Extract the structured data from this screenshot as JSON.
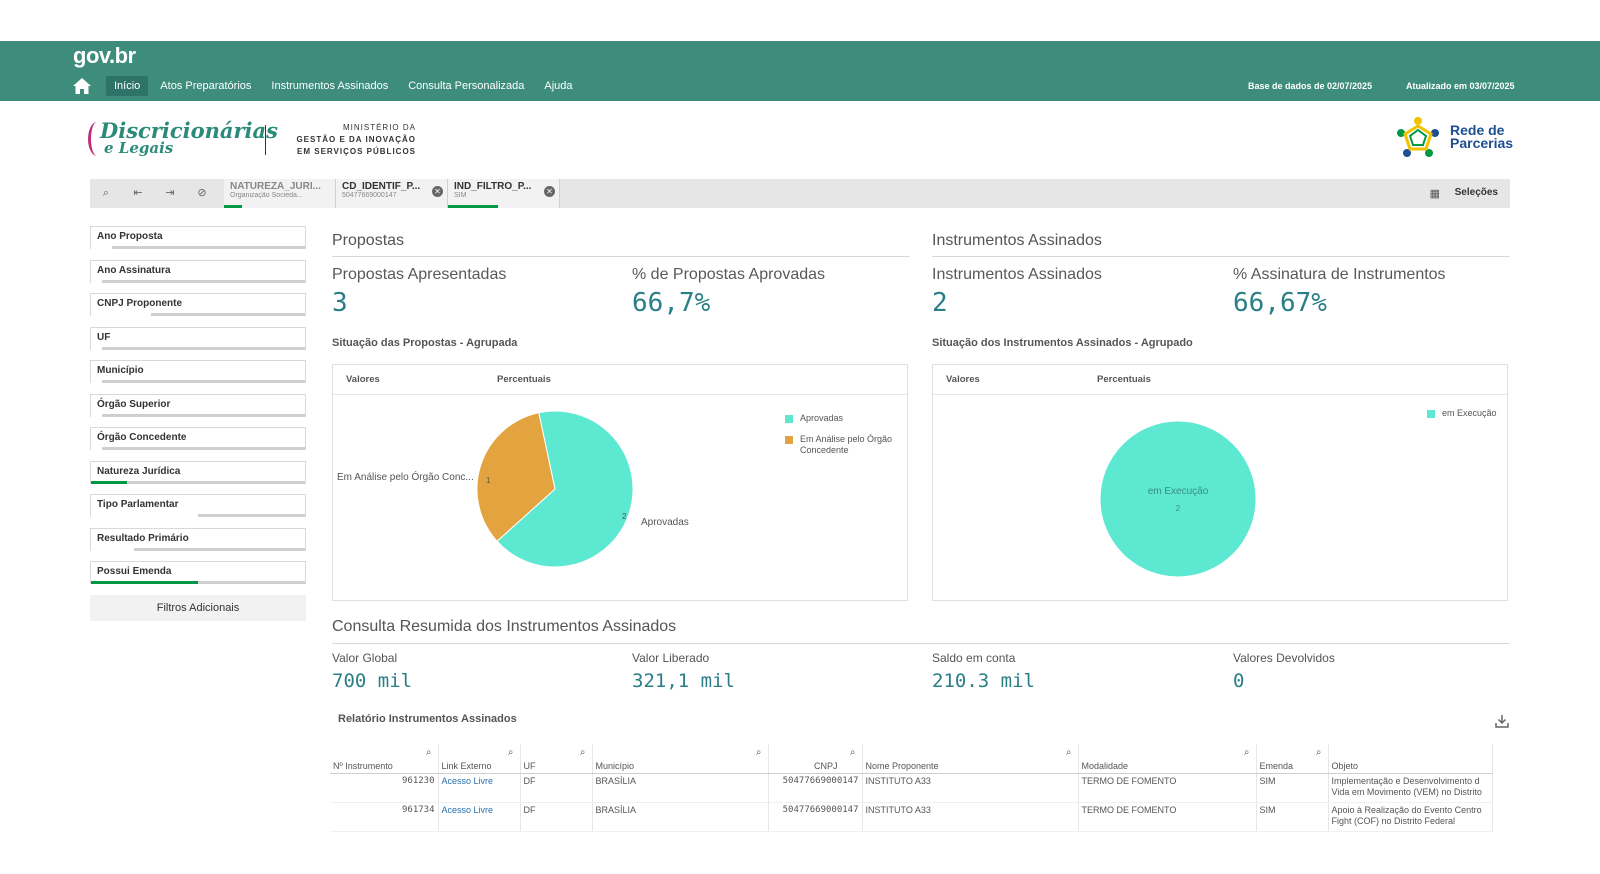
{
  "header": {
    "logo": "gov.br",
    "nav": [
      "Início",
      "Atos Preparatórios",
      "Instrumentos Assinados",
      "Consulta Personalizada",
      "Ajuda"
    ],
    "base_dados": "Base de dados de 02/07/2025",
    "atualizado": "Atualizado em 03/07/2025"
  },
  "brand": {
    "line1": "Discricionárias",
    "line2": "e Legais",
    "ministry_1": "MINISTÉRIO DA",
    "ministry_2": "GESTÃO E DA INOVAÇÃO",
    "ministry_3": "EM SERVIÇOS PÚBLICOS",
    "partner_1": "Rede de",
    "partner_2": "Parcerias"
  },
  "selection_bar": {
    "chips": [
      {
        "name": "NATUREZA_JURI...",
        "value": "Organização Socieda...",
        "fill": 0.2
      },
      {
        "name": "CD_IDENTIF_P...",
        "value": "50477669000147",
        "fill": 0
      },
      {
        "name": "IND_FILTRO_P...",
        "value": "SIM",
        "fill": 0.5
      }
    ],
    "selections_label": "Seleções"
  },
  "filters": [
    {
      "label": "Ano Proposta",
      "fill": 0.1,
      "green": false
    },
    {
      "label": "Ano Assinatura",
      "fill": 0.05,
      "green": false
    },
    {
      "label": "CNPJ Proponente",
      "fill": 0.28,
      "green": false
    },
    {
      "label": "UF",
      "fill": 0.05,
      "green": false
    },
    {
      "label": "Município",
      "fill": 0.05,
      "green": false
    },
    {
      "label": "Órgão Superior",
      "fill": 0.05,
      "green": false
    },
    {
      "label": "Órgão Concedente",
      "fill": 0.05,
      "green": false
    },
    {
      "label": "Natureza Jurídica",
      "fill": 0.17,
      "green": true
    },
    {
      "label": "Tipo Parlamentar",
      "fill": 0.5,
      "green": false
    },
    {
      "label": "Resultado Primário",
      "fill": 0.2,
      "green": false
    },
    {
      "label": "Possui Emenda",
      "fill": 0.5,
      "green": true
    }
  ],
  "filtros_adicionais": "Filtros Adicionais",
  "propostas": {
    "title": "Propostas",
    "kpi1_label": "Propostas Apresentadas",
    "kpi1_value": "3",
    "kpi2_label": "% de Propostas Aprovadas",
    "kpi2_value": "66,7%",
    "chart_title": "Situação das Propostas - Agrupada",
    "tab_valores": "Valores",
    "tab_percentuais": "Percentuais",
    "label_analise": "Em Análise pelo Órgão Conc...",
    "label_aprovadas": "Aprovadas",
    "val_analise": "1",
    "val_aprovadas": "2",
    "legend_1": "Aprovadas",
    "legend_2": "Em Análise pelo Órgão Concedente"
  },
  "instrumentos": {
    "title": "Instrumentos Assinados",
    "kpi1_label": "Instrumentos Assinados",
    "kpi1_value": "2",
    "kpi2_label": "% Assinatura de Instrumentos",
    "kpi2_value": "66,67%",
    "chart_title": "Situação dos Instrumentos Assinados - Agrupado",
    "tab_valores": "Valores",
    "tab_percentuais": "Percentuais",
    "slice_label": "em Execução",
    "slice_value": "2",
    "legend_1": "em Execução"
  },
  "chart_data": [
    {
      "type": "pie",
      "title": "Situação das Propostas - Agrupada",
      "categories": [
        "Aprovadas",
        "Em Análise pelo Órgão Concedente"
      ],
      "values": [
        2,
        1
      ],
      "colors": [
        "#5de8d2",
        "#e3a33e"
      ]
    },
    {
      "type": "pie",
      "title": "Situação dos Instrumentos Assinados - Agrupado",
      "categories": [
        "em Execução"
      ],
      "values": [
        2
      ],
      "colors": [
        "#5de8d2"
      ]
    }
  ],
  "resumo": {
    "title": "Consulta Resumida dos Instrumentos Assinados",
    "valor_global_label": "Valor Global",
    "valor_global": "700 mil",
    "valor_liberado_label": "Valor Liberado",
    "valor_liberado": "321,1 mil",
    "saldo_label": "Saldo em conta",
    "saldo": "210.3 mil",
    "devolvidos_label": "Valores Devolvidos",
    "devolvidos": "0"
  },
  "relatorio": {
    "title": "Relatório Instrumentos Assinados",
    "columns": [
      "Nº Instrumento",
      "Link Externo",
      "UF",
      "Município",
      "CNPJ",
      "Nome Proponente",
      "Modalidade",
      "Emenda",
      "Objeto"
    ],
    "rows": [
      [
        "961230",
        "Acesso Livre",
        "DF",
        "BRASÍLIA",
        "50477669000147",
        "INSTITUTO A33",
        "TERMO DE FOMENTO",
        "SIM",
        "Implementação e Desenvolvimento d Vida em Movimento (VEM) no Distrito"
      ],
      [
        "961734",
        "Acesso Livre",
        "DF",
        "BRASÍLIA",
        "50477669000147",
        "INSTITUTO A33",
        "TERMO DE FOMENTO",
        "SIM",
        "Apoio à Realização do Evento Centro Fight (COF) no Distrito Federal"
      ]
    ]
  },
  "colors": {
    "header": "#3d8c7c",
    "kpi": "#2a7f87",
    "teal_slice": "#5de8d2",
    "orange_slice": "#e3a33e",
    "selection_green": "#009845"
  }
}
